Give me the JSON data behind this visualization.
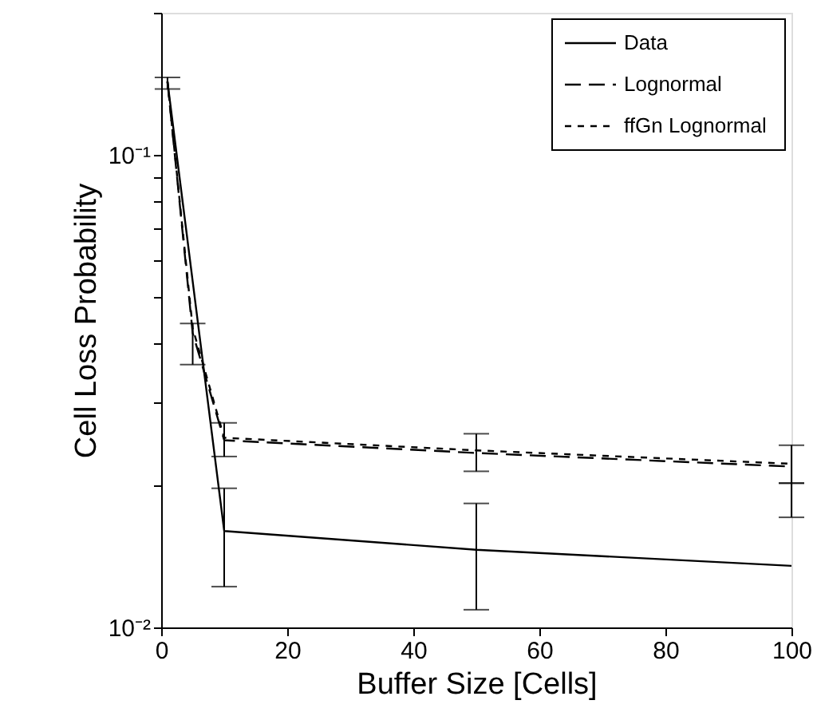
{
  "chart_data": {
    "type": "line",
    "xlabel": "Buffer Size [Cells]",
    "ylabel": "Cell Loss Probability",
    "log": "y",
    "xlim": [
      0,
      100
    ],
    "xticks": [
      0,
      20,
      40,
      60,
      80,
      100
    ],
    "ylim": [
      0.01,
      0.2
    ],
    "yticks": [
      {
        "value": 0.01,
        "label": "10⁻²"
      },
      {
        "value": 0.02,
        "label": null
      },
      {
        "value": 0.03,
        "label": null
      },
      {
        "value": 0.04,
        "label": null
      },
      {
        "value": 0.05,
        "label": null
      },
      {
        "value": 0.06,
        "label": null
      },
      {
        "value": 0.07,
        "label": null
      },
      {
        "value": 0.08,
        "label": null
      },
      {
        "value": 0.09,
        "label": null
      },
      {
        "value": 0.1,
        "label": "10⁻¹"
      },
      {
        "value": 0.2,
        "label": null
      }
    ],
    "grid": false,
    "legend": "top right",
    "marker": "none",
    "series": [
      {
        "name": "Data",
        "color": "#000000",
        "line_style": "solid",
        "x": [
          1,
          10,
          50,
          100
        ],
        "values": [
          0.143,
          0.016,
          0.0146,
          0.0135
        ],
        "errors": [
          [
            0.138,
            0.146
          ],
          [
            0.0122,
            0.0197
          ],
          [
            0.0109,
            0.0183
          ],
          [
            0.0171,
            0.0202
          ]
        ]
      },
      {
        "name": "Lognormal",
        "color": "#000000",
        "line_style": "dashed",
        "x": [
          1,
          5,
          10,
          50,
          100
        ],
        "values": [
          0.143,
          0.042,
          0.0249,
          0.0234,
          0.0219
        ],
        "errors": [
          null,
          [
            0.036,
            0.044
          ],
          [
            0.023,
            0.0271
          ],
          [
            0.0214,
            0.0257
          ],
          [
            0.0202,
            0.0243
          ]
        ]
      },
      {
        "name": "ffGn Lognormal",
        "color": "#000000",
        "line_style": "dotted",
        "x": [
          1,
          5,
          10,
          50,
          100
        ],
        "values": [
          0.143,
          0.043,
          0.0252,
          0.0237,
          0.0222
        ]
      }
    ]
  }
}
